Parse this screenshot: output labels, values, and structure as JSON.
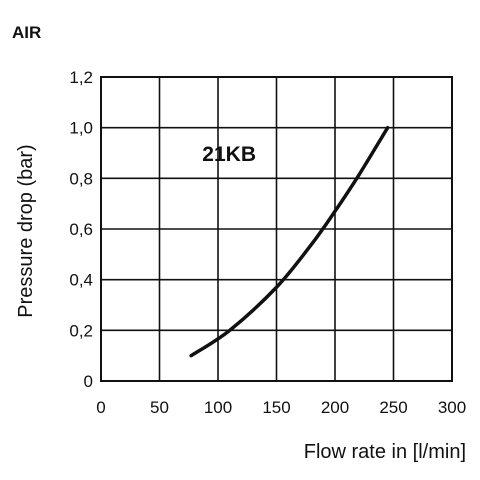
{
  "chart_data": {
    "type": "line",
    "title": "AIR",
    "xlabel": "Flow rate in [l/min]",
    "ylabel": "Pressure drop (bar)",
    "xlim": [
      0,
      300
    ],
    "ylim": [
      0,
      1.2
    ],
    "x_ticks": [
      0,
      50,
      100,
      150,
      200,
      250,
      300
    ],
    "x_tick_labels": [
      "0",
      "50",
      "100",
      "150",
      "200",
      "250",
      "300"
    ],
    "y_ticks": [
      0,
      0.2,
      0.4,
      0.6,
      0.8,
      1.0,
      1.2
    ],
    "y_tick_labels": [
      "0",
      "0,2",
      "0,4",
      "0,6",
      "0,8",
      "1,0",
      "1,2"
    ],
    "grid": true,
    "annotation": {
      "text": "21KB",
      "x": 90,
      "y": 0.9
    },
    "series": [
      {
        "x": [
          77,
          110,
          150,
          180,
          200,
          220,
          245
        ],
        "values": [
          0.1,
          0.2,
          0.37,
          0.54,
          0.67,
          0.81,
          1.0
        ]
      }
    ]
  }
}
